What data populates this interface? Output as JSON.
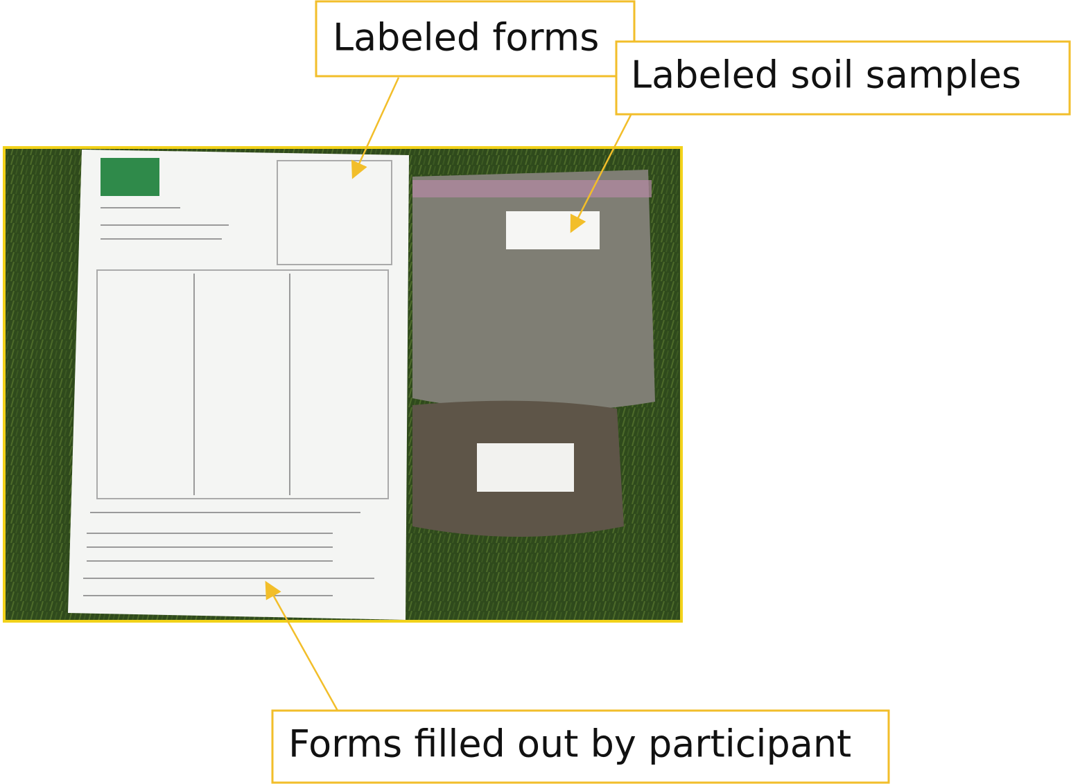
{
  "callouts": [
    {
      "label": "Labeled forms"
    },
    {
      "label": "Labeled soil samples"
    },
    {
      "label": "Forms filled out by participant"
    }
  ]
}
